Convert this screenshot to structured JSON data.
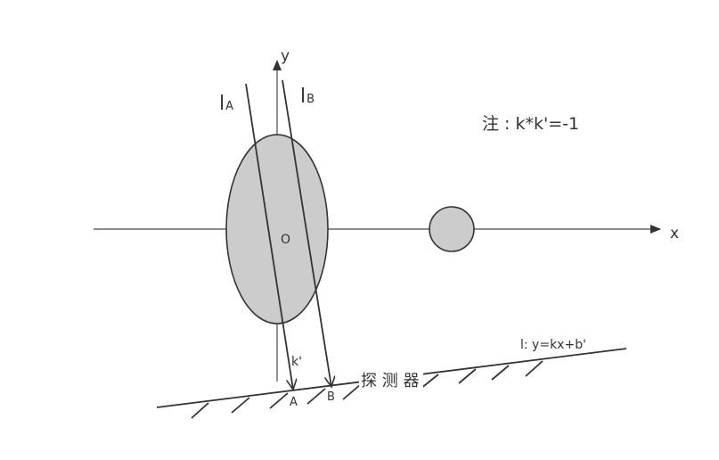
{
  "colors": {
    "stroke": "#333333",
    "axis": "#666666",
    "fill": "#cccccc",
    "background": "#ffffff"
  },
  "labels": {
    "y_axis": "y",
    "x_axis": "x",
    "origin": "O",
    "ray_a_main": "l",
    "ray_a_sub": "A",
    "ray_b_main": "l",
    "ray_b_sub": "B",
    "note": "注 : k*k'=-1",
    "k_prime": "k'",
    "point_a": "A",
    "point_b": "B",
    "detector": "探 测 器",
    "line_equation": "l:  y=kx+b'"
  }
}
